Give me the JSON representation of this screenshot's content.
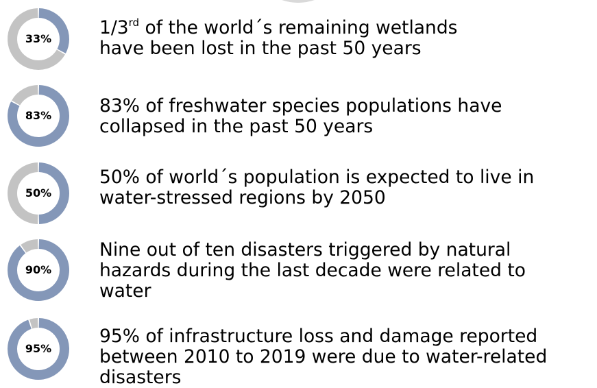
{
  "colors": {
    "filled": "#8497B8",
    "remainder": "#C3C3C3"
  },
  "chart_data": {
    "type": "pie",
    "variant": "donut",
    "items": [
      {
        "value_percent": 33,
        "label": "33%",
        "text_before_sup": "1/3",
        "text_sup": "rd",
        "text_line1_rest": " of the world´s remaining wetlands",
        "text_line2": "have been lost in the past 50 years"
      },
      {
        "value_percent": 83,
        "label": "83%",
        "text_lines": [
          "83% of freshwater species populations have",
          "collapsed in the past 50 years"
        ]
      },
      {
        "value_percent": 50,
        "label": "50%",
        "text_lines": [
          "50% of world´s population is expected to live in",
          "water-stressed regions by 2050"
        ]
      },
      {
        "value_percent": 90,
        "label": "90%",
        "text_lines": [
          "Nine out of ten disasters triggered by natural",
          "hazards during the last decade were related to",
          "water"
        ]
      },
      {
        "value_percent": 95,
        "label": "95%",
        "text_lines": [
          "95% of infrastructure loss and damage reported",
          "between 2010 to 2019 were due to water-related",
          "disasters"
        ]
      }
    ]
  }
}
